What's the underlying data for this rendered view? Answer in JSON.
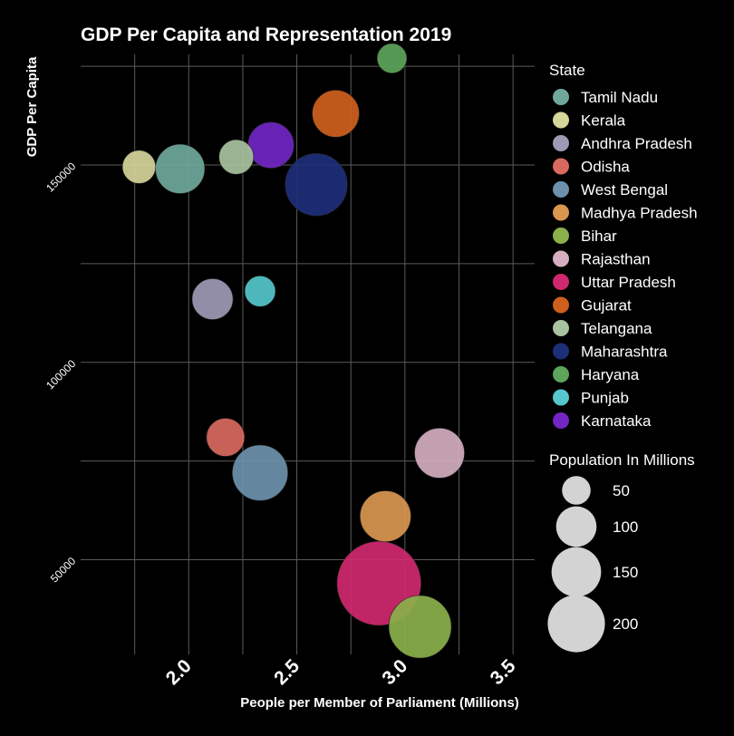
{
  "chart_data": {
    "type": "scatter",
    "title": "GDP Per Capita and Representation 2019",
    "xlabel": "People per Member of Parliament (Millions)",
    "ylabel": "GDP Per Capita",
    "xlim": [
      1.5,
      3.6
    ],
    "ylim": [
      26000,
      178000
    ],
    "x_ticks": [
      {
        "value": 2.0,
        "label": "2.0"
      },
      {
        "value": 2.5,
        "label": "2.5"
      },
      {
        "value": 3.0,
        "label": "3.0"
      },
      {
        "value": 3.5,
        "label": "3.5"
      }
    ],
    "y_ticks": [
      {
        "value": 50000,
        "label": "50000"
      },
      {
        "value": 100000,
        "label": "100000"
      },
      {
        "value": 150000,
        "label": "150000"
      }
    ],
    "grid": true,
    "legend_position": "right",
    "color_legend_title": "State",
    "size_legend_title": "Population In Millions",
    "size_legend": [
      {
        "value": 50,
        "label": "50"
      },
      {
        "value": 100,
        "label": "100"
      },
      {
        "value": 150,
        "label": "150"
      },
      {
        "value": 200,
        "label": "200"
      }
    ],
    "series": [
      {
        "name": "Tamil Nadu",
        "color": "#6fa89b",
        "x": 1.96,
        "y": 149000,
        "population": 77
      },
      {
        "name": "Kerala",
        "color": "#d6d59a",
        "x": 1.77,
        "y": 149500,
        "population": 35
      },
      {
        "name": "Andhra Pradesh",
        "color": "#9e9ab5",
        "x": 2.11,
        "y": 116000,
        "population": 53
      },
      {
        "name": "Odisha",
        "color": "#d9695f",
        "x": 2.17,
        "y": 81000,
        "population": 46
      },
      {
        "name": "West Bengal",
        "color": "#6d91ad",
        "x": 2.33,
        "y": 72000,
        "population": 98
      },
      {
        "name": "Madhya Pradesh",
        "color": "#d9974f",
        "x": 2.91,
        "y": 61000,
        "population": 82
      },
      {
        "name": "Bihar",
        "color": "#8ab04a",
        "x": 3.07,
        "y": 33000,
        "population": 124
      },
      {
        "name": "Rajasthan",
        "color": "#d4aebf",
        "x": 3.16,
        "y": 77000,
        "population": 79
      },
      {
        "name": "Uttar Pradesh",
        "color": "#d0286e",
        "x": 2.88,
        "y": 44000,
        "population": 224
      },
      {
        "name": "Gujarat",
        "color": "#cf5f1d",
        "x": 2.68,
        "y": 163000,
        "population": 70
      },
      {
        "name": "Telangana",
        "color": "#a9c2a0",
        "x": 2.22,
        "y": 152000,
        "population": 38
      },
      {
        "name": "Maharashtra",
        "color": "#1e2f7a",
        "x": 2.59,
        "y": 145000,
        "population": 123
      },
      {
        "name": "Haryana",
        "color": "#5ca55a",
        "x": 2.94,
        "y": 177000,
        "population": 28
      },
      {
        "name": "Punjab",
        "color": "#55c7cc",
        "x": 2.33,
        "y": 118000,
        "population": 30
      },
      {
        "name": "Karnataka",
        "color": "#7126c4",
        "x": 2.38,
        "y": 155000,
        "population": 67
      }
    ]
  }
}
